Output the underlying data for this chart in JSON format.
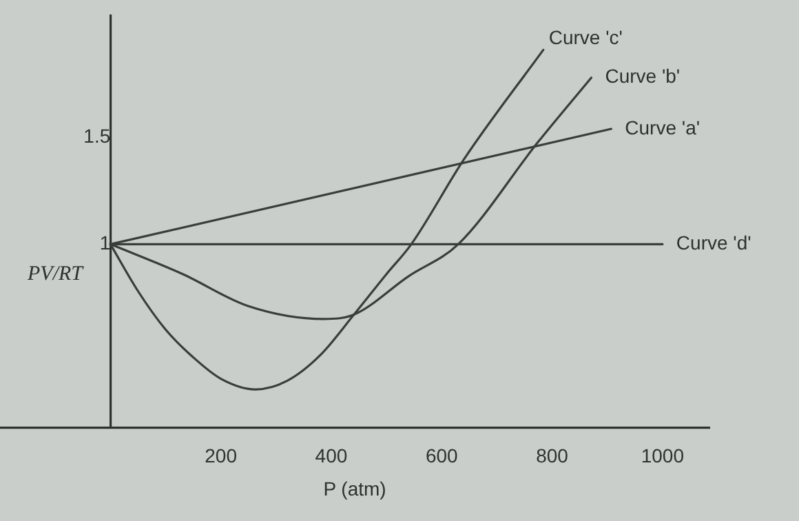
{
  "chart_data": {
    "type": "line",
    "xlabel": "P (atm)",
    "ylabel": "PV/RT",
    "xlim": [
      -200,
      1085
    ],
    "ylim": [
      0.14,
      2.07
    ],
    "xticks": [
      200,
      400,
      600,
      800,
      1000
    ],
    "yticks": [
      1,
      1.5
    ],
    "grid": false,
    "legend": false,
    "marker": "none",
    "line_style": "solid",
    "series": [
      {
        "name": "Curve 'a'",
        "color": "#3a3e3b",
        "x": [
          0,
          907
        ],
        "values": [
          1,
          1.54
        ]
      },
      {
        "name": "Curve 'b'",
        "color": "#3a3e3b",
        "x": [
          0,
          131,
          250,
          386,
          441,
          540,
          630,
          775,
          871
        ],
        "values": [
          1,
          0.86,
          0.71,
          0.65,
          0.67,
          0.85,
          1,
          1.48,
          1.78
        ]
      },
      {
        "name": "Curve 'c'",
        "color": "#3a3e3b",
        "x": [
          0,
          50,
          100,
          150,
          200,
          263,
          320,
          380,
          441,
          500,
          545,
          641,
          784
        ],
        "values": [
          1,
          0.78,
          0.6,
          0.47,
          0.37,
          0.32,
          0.36,
          0.48,
          0.67,
          0.86,
          1,
          1.4,
          1.91
        ]
      },
      {
        "name": "Curve 'd'",
        "color": "#3a3e3b",
        "x": [
          0,
          1000
        ],
        "values": [
          1,
          1
        ]
      }
    ]
  }
}
